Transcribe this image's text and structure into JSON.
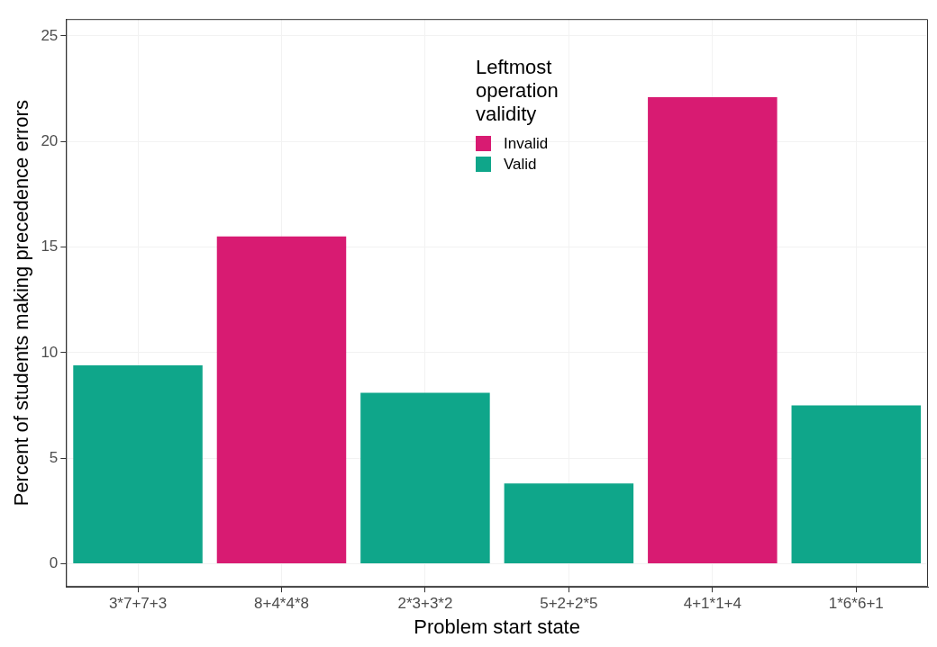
{
  "chart_data": {
    "type": "bar",
    "xlabel": "Problem start state",
    "ylabel": "Percent of students making precedence errors",
    "categories": [
      "3*7+7+3",
      "8+4*4*8",
      "2*3+3*2",
      "5+2+2*5",
      "4+1*1+4",
      "1*6*6+1"
    ],
    "stacked": true,
    "series": [
      {
        "name": "Invalid",
        "color": "#d81b72",
        "values": [
          null,
          15.5,
          null,
          null,
          22.1,
          null
        ]
      },
      {
        "name": "Valid",
        "color": "#0fa68a",
        "values": [
          9.4,
          null,
          8.1,
          3.8,
          null,
          7.5
        ]
      }
    ],
    "legend_title": "Leftmost operation validity",
    "legend": "top",
    "ylim": [
      -1.1,
      25.8
    ],
    "yticks": [
      0,
      5,
      10,
      15,
      20,
      25
    ],
    "grid": true
  }
}
